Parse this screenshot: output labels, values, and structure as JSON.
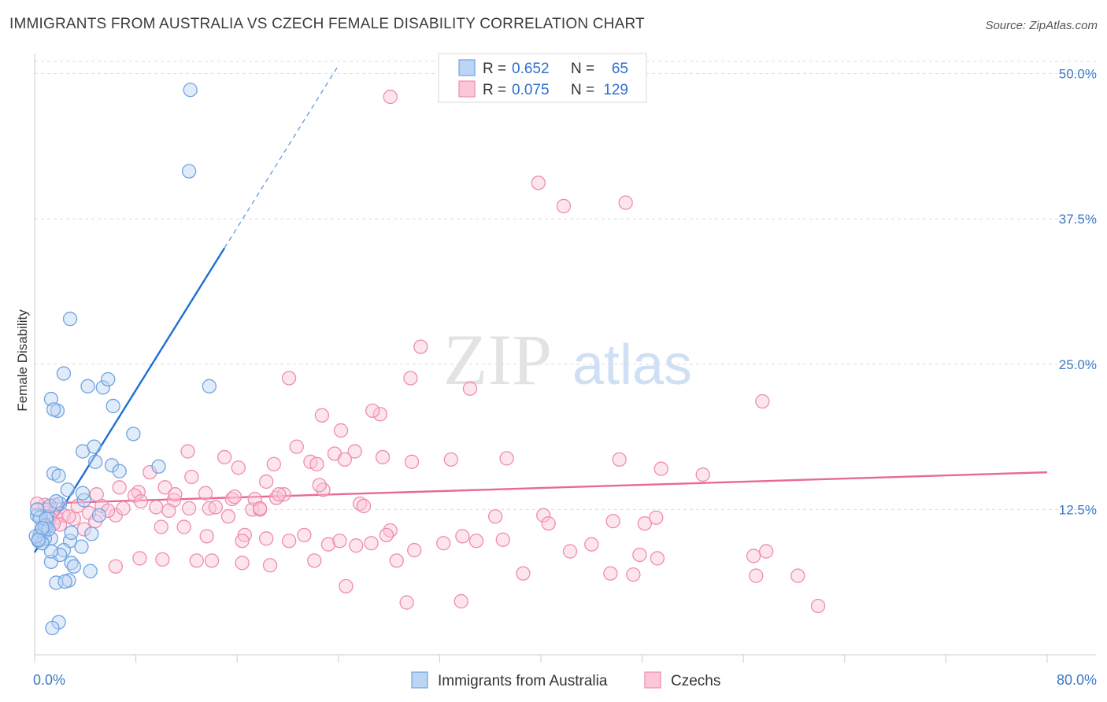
{
  "header": {
    "title": "IMMIGRANTS FROM AUSTRALIA VS CZECH FEMALE DISABILITY CORRELATION CHART",
    "source": "Source: ZipAtlas.com"
  },
  "watermark": {
    "zip": "ZIP",
    "atlas": "atlas"
  },
  "legend_box": {
    "rows": [
      {
        "r_label": "R =",
        "r_value": "0.652",
        "n_label": "N =",
        "n_value": "65",
        "color": "#6fa3e0"
      },
      {
        "r_label": "R =",
        "r_value": "0.075",
        "n_label": "N =",
        "n_value": "129",
        "color": "#f08cae"
      }
    ]
  },
  "chart_data": {
    "type": "scatter",
    "title": "IMMIGRANTS FROM AUSTRALIA VS CZECH FEMALE DISABILITY CORRELATION CHART",
    "xlabel": "",
    "ylabel": "Female Disability",
    "xlim": [
      0,
      80
    ],
    "ylim": [
      0,
      52
    ],
    "x_tick_labels": [
      "0.0%",
      "80.0%"
    ],
    "y_ticks": [
      12.5,
      25.0,
      37.5,
      50.0
    ],
    "y_tick_labels": [
      "12.5%",
      "25.0%",
      "37.5%",
      "50.0%"
    ],
    "grid": "horizontal dashed",
    "legend_position": "bottom",
    "series": [
      {
        "name": "Immigrants from Australia",
        "color": "#6fa3e0",
        "line_color": "#1f6ed4",
        "R": 0.652,
        "N": 65,
        "trend": {
          "x0": 0,
          "y0": 8.8,
          "x1": 15,
          "y1": 35.0,
          "dash_x1": 24,
          "dash_y1": 50.7
        },
        "x": [
          12.3,
          12.2,
          2.8,
          2.3,
          1.3,
          1.8,
          1.5,
          4.2,
          5.4,
          6.2,
          5.8,
          6.1,
          7.8,
          13.8,
          3.8,
          4.7,
          4.8,
          1.5,
          1.9,
          2.0,
          3.9,
          3.8,
          2.6,
          6.7,
          9.8,
          0.5,
          1.0,
          1.2,
          0.8,
          0.9,
          2.8,
          2.9,
          2.3,
          0.7,
          1.3,
          0.6,
          0.3,
          0.4,
          0.5,
          0.8,
          1.3,
          0.2,
          0.4,
          0.6,
          3.7,
          2.0,
          1.3,
          0.8,
          0.9,
          1.1,
          2.9,
          3.1,
          4.4,
          2.7,
          1.7,
          2.4,
          1.9,
          5.1,
          1.7,
          4.5,
          0.1,
          0.3,
          0.2,
          1.4,
          0.6
        ],
        "y": [
          48.6,
          41.6,
          28.9,
          24.2,
          22.0,
          21.0,
          21.1,
          23.1,
          23.0,
          21.4,
          23.7,
          16.3,
          19.0,
          23.1,
          17.5,
          17.9,
          16.6,
          15.6,
          15.4,
          13.0,
          13.3,
          13.9,
          14.2,
          15.8,
          16.2,
          11.9,
          11.9,
          12.8,
          11.2,
          10.9,
          9.8,
          10.5,
          9.0,
          10.5,
          10.0,
          9.6,
          9.8,
          10.3,
          10.6,
          10.0,
          8.0,
          12.0,
          11.8,
          9.6,
          9.3,
          8.6,
          8.9,
          11.1,
          11.7,
          10.8,
          7.9,
          7.6,
          7.2,
          6.4,
          6.2,
          6.3,
          2.8,
          12.0,
          13.2,
          10.4,
          10.2,
          9.9,
          12.5,
          2.3,
          10.9
        ]
      },
      {
        "name": "Czechs",
        "color": "#f08cae",
        "line_color": "#e8689a",
        "R": 0.075,
        "N": 129,
        "trend": {
          "x0": 0,
          "y0": 13.0,
          "x1": 80,
          "y1": 15.7
        },
        "x": [
          28.1,
          39.8,
          41.8,
          46.7,
          30.5,
          20.1,
          29.7,
          34.4,
          22.7,
          27.3,
          26.7,
          57.5,
          24.2,
          20.7,
          25.3,
          32.9,
          23.7,
          12.1,
          15.0,
          16.1,
          18.9,
          21.8,
          22.3,
          24.5,
          27.5,
          29.8,
          37.3,
          46.2,
          49.5,
          52.8,
          8.2,
          10.3,
          11.0,
          9.1,
          12.4,
          13.5,
          15.6,
          17.2,
          17.4,
          19.1,
          18.3,
          22.8,
          6.7,
          7.9,
          6.4,
          5.3,
          4.3,
          4.9,
          3.4,
          2.3,
          3.1,
          2.7,
          1.7,
          1.6,
          1.0,
          0.8,
          1.2,
          2.0,
          5.8,
          7.0,
          8.4,
          9.6,
          10.6,
          11.1,
          12.2,
          13.8,
          14.3,
          15.8,
          17.8,
          19.7,
          19.3,
          22.5,
          25.7,
          26.0,
          28.1,
          33.8,
          36.4,
          40.2,
          40.6,
          45.7,
          48.2,
          49.1,
          11.8,
          13.6,
          16.6,
          18.3,
          21.3,
          23.2,
          25.4,
          27.8,
          30.0,
          32.3,
          34.9,
          37.0,
          42.3,
          44.0,
          47.8,
          49.2,
          56.8,
          57.8,
          60.3,
          16.4,
          20.1,
          24.1,
          26.6,
          28.6,
          6.4,
          8.3,
          10.1,
          12.8,
          14.0,
          16.4,
          18.6,
          22.1,
          24.6,
          29.4,
          33.7,
          38.6,
          45.5,
          47.3,
          57.0,
          61.9,
          3.9,
          4.8,
          1.5,
          10.0,
          15.3,
          17.8,
          0.2
        ],
        "y": [
          48.0,
          40.6,
          38.6,
          38.9,
          26.5,
          23.8,
          23.8,
          22.9,
          20.6,
          20.7,
          21.0,
          21.8,
          19.3,
          17.9,
          17.5,
          16.8,
          17.3,
          17.5,
          17.0,
          16.1,
          16.4,
          16.6,
          16.4,
          16.8,
          17.0,
          16.6,
          16.9,
          16.8,
          16.0,
          15.5,
          14.0,
          14.4,
          13.3,
          15.7,
          15.3,
          13.9,
          13.4,
          12.5,
          13.4,
          13.5,
          14.9,
          14.2,
          14.4,
          13.7,
          12.0,
          12.8,
          12.2,
          13.8,
          12.8,
          12.0,
          11.7,
          11.9,
          11.8,
          12.9,
          12.2,
          12.9,
          11.8,
          11.2,
          12.4,
          12.6,
          13.2,
          12.7,
          12.4,
          13.8,
          12.6,
          12.6,
          12.7,
          13.6,
          12.5,
          13.8,
          13.8,
          14.6,
          13.0,
          12.8,
          10.7,
          10.2,
          11.9,
          12.0,
          11.3,
          11.5,
          11.3,
          11.8,
          11.0,
          10.2,
          10.3,
          10.0,
          10.3,
          9.5,
          9.4,
          10.3,
          9.0,
          9.6,
          9.8,
          9.9,
          8.9,
          9.5,
          8.6,
          8.3,
          8.5,
          8.9,
          6.8,
          9.8,
          9.8,
          9.8,
          9.6,
          8.1,
          7.6,
          8.3,
          8.2,
          8.1,
          8.1,
          7.9,
          7.7,
          8.1,
          5.9,
          4.5,
          4.6,
          7.0,
          7.0,
          6.9,
          6.8,
          4.2,
          10.8,
          11.5,
          11.3,
          11.0,
          11.9,
          12.6,
          13.0
        ]
      }
    ]
  }
}
